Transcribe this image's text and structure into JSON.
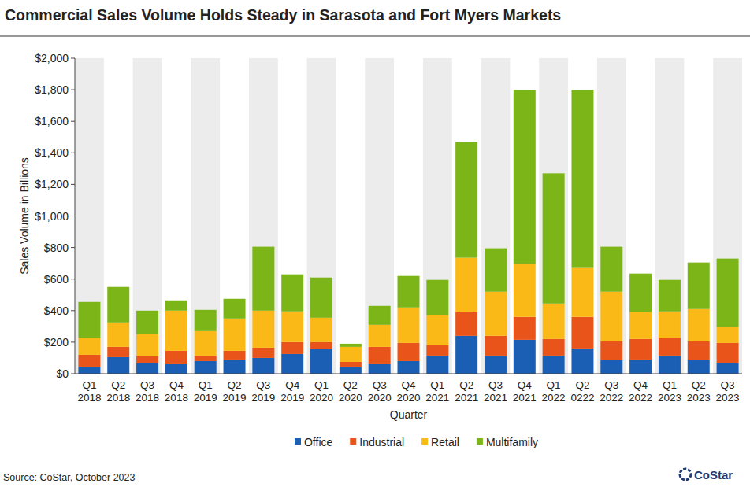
{
  "chart_data": {
    "type": "bar",
    "title": "Commercial Sales Volume Holds Steady in Sarasota and Fort Myers Markets",
    "x_label": "Quarter",
    "y_label": "Sales Volume in Billions",
    "source": "Source: CoStar, October 2023",
    "annotations": [
      "CoStar"
    ],
    "stacked": true,
    "grid": false,
    "legend": "bottom",
    "categories": [
      "Q1 2018",
      "Q2 2018",
      "Q3 2018",
      "Q4 2018",
      "Q1 2019",
      "Q2 2019",
      "Q3 2019",
      "Q4 2019",
      "Q1 2020",
      "Q2 2020",
      "Q3 2020",
      "Q4 2020",
      "Q1 2021",
      "Q2 2021",
      "Q3 2021",
      "Q4 2021",
      "Q1 2022",
      "Q2 0222",
      "Q3 2022",
      "Q4 2022",
      "Q1 2023",
      "Q2 2023",
      "Q3 2023"
    ],
    "series": [
      {
        "name": "Office",
        "color": "#1a5fb4",
        "values": [
          45,
          105,
          65,
          60,
          80,
          90,
          100,
          125,
          155,
          40,
          60,
          80,
          115,
          240,
          115,
          215,
          115,
          160,
          85,
          90,
          115,
          85,
          65
        ]
      },
      {
        "name": "Industrial",
        "color": "#e8541a",
        "values": [
          75,
          65,
          45,
          85,
          35,
          55,
          65,
          75,
          45,
          35,
          110,
          115,
          65,
          150,
          125,
          145,
          105,
          200,
          120,
          130,
          110,
          120,
          130
        ]
      },
      {
        "name": "Retail",
        "color": "#fbb917",
        "values": [
          105,
          155,
          140,
          255,
          155,
          205,
          235,
          195,
          155,
          95,
          140,
          225,
          190,
          345,
          280,
          335,
          225,
          310,
          315,
          170,
          170,
          205,
          100
        ]
      },
      {
        "name": "Multifamily",
        "color": "#7cb518",
        "values": [
          230,
          225,
          150,
          65,
          135,
          125,
          405,
          235,
          255,
          20,
          120,
          200,
          225,
          735,
          275,
          1105,
          825,
          1130,
          285,
          245,
          200,
          295,
          435
        ]
      }
    ],
    "ylim": [
      0,
      2000
    ],
    "yticks": [
      {
        "value": 0,
        "label": "$0"
      },
      {
        "value": 200,
        "label": "$200"
      },
      {
        "value": 400,
        "label": "$400"
      },
      {
        "value": 600,
        "label": "$600"
      },
      {
        "value": 800,
        "label": "$800"
      },
      {
        "value": 1000,
        "label": "$1,000"
      },
      {
        "value": 1200,
        "label": "$1,200"
      },
      {
        "value": 1400,
        "label": "$1,400"
      },
      {
        "value": 1600,
        "label": "$1,600"
      },
      {
        "value": 1800,
        "label": "$1,800"
      },
      {
        "value": 2000,
        "label": "$2,000"
      }
    ]
  }
}
